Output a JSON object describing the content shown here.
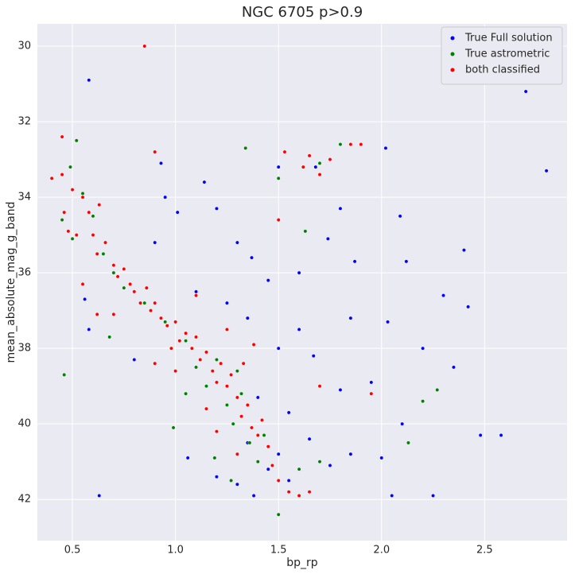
{
  "chart_data": {
    "type": "scatter",
    "title": "NGC 6705 p>0.9",
    "xlabel": "bp_rp",
    "ylabel": "mean_absolute_mag_g_band",
    "xlim": [
      0.33,
      2.9
    ],
    "ylim": [
      43.09,
      29.41
    ],
    "xticks": [
      0.5,
      {
        "value": 1,
        "label": "1.0"
      },
      1.5,
      {
        "value": 2,
        "label": "2.0"
      },
      2.5
    ],
    "yticks": [
      30,
      32,
      34,
      36,
      38,
      40,
      42
    ],
    "grid": true,
    "legend": "upper right",
    "series": [
      {
        "name": "True Full solution",
        "color": "#0000ff",
        "x": [
          0.58,
          2.7,
          2.8,
          2.02,
          0.93,
          1.5,
          1.8,
          2.09,
          1.14,
          1.01,
          1.2,
          1.74,
          2.12,
          2.4,
          1.3,
          1.37,
          1.45,
          1.6,
          1.87,
          2.3,
          2.42,
          1.1,
          1.25,
          1.35,
          1.6,
          1.85,
          2.03,
          2.2,
          2.35,
          1.5,
          1.67,
          1.95,
          1.4,
          1.55,
          1.8,
          2.1,
          2.48,
          2.58,
          1.35,
          1.5,
          1.65,
          1.85,
          2.0,
          1.38,
          1.55,
          1.75,
          2.05,
          2.25,
          0.63,
          0.58,
          0.56,
          0.8,
          1.06,
          1.2,
          1.45,
          1.3,
          0.95,
          0.9,
          1.68
        ],
        "values": [
          30.9,
          31.2,
          33.3,
          32.7,
          33.1,
          33.2,
          34.3,
          34.5,
          33.6,
          34.4,
          34.3,
          35.1,
          35.7,
          35.4,
          35.2,
          35.6,
          36.2,
          36.0,
          35.7,
          36.6,
          36.9,
          36.5,
          36.8,
          37.2,
          37.5,
          37.2,
          37.3,
          38.0,
          38.5,
          38.0,
          38.2,
          38.9,
          39.3,
          39.7,
          39.1,
          40.0,
          40.3,
          40.3,
          40.5,
          40.8,
          40.4,
          40.8,
          40.9,
          41.9,
          41.5,
          41.1,
          41.9,
          41.9,
          41.9,
          37.5,
          36.7,
          38.3,
          40.9,
          41.4,
          41.2,
          41.6,
          34.0,
          35.2,
          33.2
        ]
      },
      {
        "name": "True astrometric",
        "color": "#008000",
        "x": [
          0.46,
          0.52,
          0.49,
          0.55,
          0.6,
          0.65,
          0.7,
          0.75,
          0.68,
          0.85,
          0.95,
          1.05,
          1.1,
          1.15,
          1.2,
          1.25,
          1.28,
          1.32,
          1.36,
          1.4,
          1.43,
          1.5,
          1.6,
          1.7,
          1.63,
          1.34,
          1.5,
          1.8,
          0.99,
          1.27,
          1.19,
          2.27,
          2.2,
          2.13,
          1.05,
          1.3,
          0.5,
          0.45,
          1.7
        ],
        "values": [
          38.7,
          32.5,
          33.2,
          33.9,
          34.5,
          35.5,
          36.0,
          36.4,
          37.7,
          36.8,
          37.3,
          37.8,
          38.5,
          39.0,
          38.3,
          39.5,
          40.0,
          39.2,
          40.5,
          41.0,
          40.3,
          42.4,
          41.2,
          41.0,
          34.9,
          32.7,
          33.5,
          32.6,
          40.1,
          41.5,
          40.9,
          39.1,
          39.4,
          40.5,
          39.2,
          38.6,
          35.1,
          34.6,
          33.1
        ]
      },
      {
        "name": "both classified",
        "color": "#ff0000",
        "x": [
          0.45,
          0.85,
          0.9,
          1.5,
          1.53,
          1.9,
          1.85,
          1.65,
          1.62,
          1.7,
          1.75,
          0.45,
          0.5,
          0.46,
          0.48,
          0.52,
          0.55,
          0.58,
          0.6,
          0.62,
          0.63,
          0.66,
          0.7,
          0.72,
          0.75,
          0.78,
          0.8,
          0.83,
          0.86,
          0.88,
          0.9,
          0.93,
          0.96,
          1.0,
          1.02,
          1.05,
          1.08,
          1.1,
          1.12,
          1.15,
          1.18,
          1.2,
          1.22,
          1.25,
          1.27,
          1.3,
          1.32,
          1.35,
          1.37,
          1.4,
          1.42,
          1.45,
          1.47,
          1.5,
          1.55,
          1.6,
          1.65,
          1.3,
          1.2,
          1.15,
          0.98,
          0.9,
          0.55,
          0.7,
          0.4,
          0.62,
          1.0,
          1.25,
          1.38,
          1.33,
          1.7,
          1.95,
          1.1
        ],
        "values": [
          32.4,
          30.0,
          32.8,
          34.6,
          32.8,
          32.6,
          32.6,
          32.9,
          33.2,
          33.4,
          33.0,
          33.4,
          33.8,
          34.4,
          34.9,
          35.0,
          34.0,
          34.4,
          35.0,
          35.5,
          34.2,
          35.2,
          35.8,
          36.1,
          35.9,
          36.3,
          36.5,
          36.8,
          36.4,
          37.0,
          36.8,
          37.2,
          37.4,
          37.3,
          37.8,
          37.6,
          38.0,
          37.7,
          38.3,
          38.1,
          38.6,
          38.9,
          38.4,
          39.0,
          38.7,
          39.3,
          39.8,
          39.5,
          40.1,
          40.3,
          39.9,
          40.6,
          41.1,
          41.5,
          41.8,
          41.9,
          41.8,
          40.8,
          40.2,
          39.6,
          38.0,
          38.4,
          36.3,
          37.1,
          33.5,
          37.1,
          38.6,
          37.5,
          37.9,
          38.4,
          39.0,
          39.2,
          36.6
        ]
      }
    ]
  }
}
